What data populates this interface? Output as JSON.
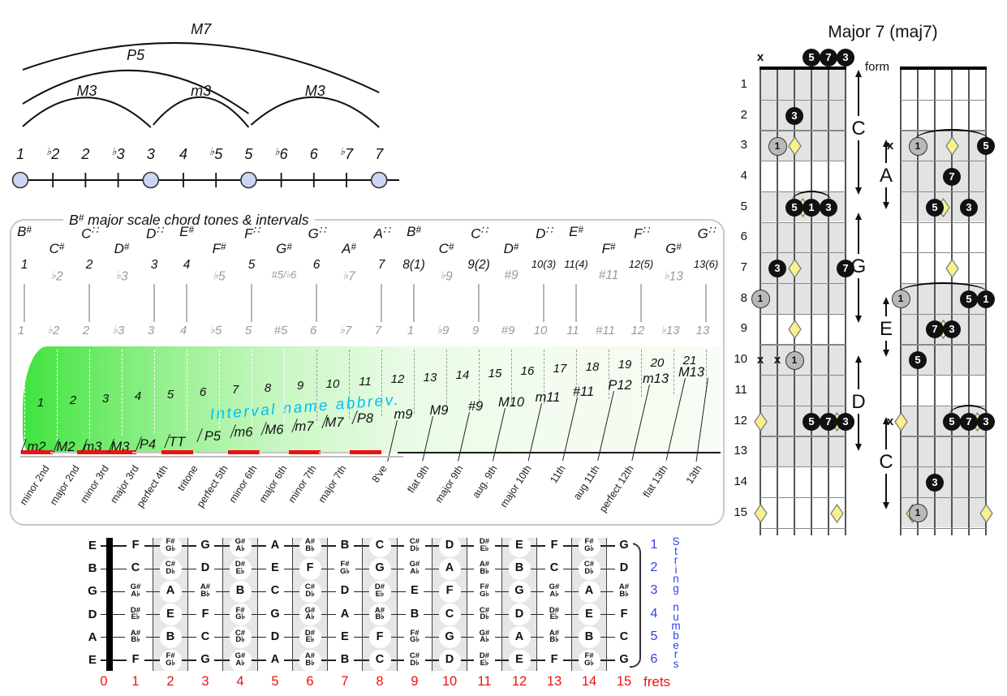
{
  "colors": {
    "red": "#ee1111",
    "blue": "#2d3ef2",
    "cyan": "#00bff3",
    "green": "#3fe33f",
    "shade": "#e4e4e4",
    "diamond": "#f8f18c",
    "node": "#ccd6f4"
  },
  "interval_diagram": {
    "degrees": [
      "1",
      "b2",
      "2",
      "b3",
      "3",
      "4",
      "b5",
      "5",
      "b6",
      "6",
      "b7",
      "7"
    ],
    "node_indexes": [
      0,
      4,
      7,
      11
    ],
    "arcs": [
      {
        "label": "M7",
        "from": 0,
        "to": 11
      },
      {
        "label": "P5",
        "from": 0,
        "to": 7
      },
      {
        "label": "M3",
        "from": 0,
        "to": 4
      },
      {
        "label": "m3",
        "from": 4,
        "to": 7
      },
      {
        "label": "M3",
        "from": 7,
        "to": 11
      }
    ]
  },
  "scale_panel": {
    "title": "B# major scale chord tones & intervals",
    "cyan_note": "Interval name abbrev.",
    "columns": [
      {
        "note": "B#",
        "row": "high",
        "degree": "1",
        "gray": false,
        "bottom": "1"
      },
      {
        "note": "C#",
        "row": "low",
        "degree": "b2",
        "gray": true,
        "bottom": "b2"
      },
      {
        "note": "C##",
        "row": "high",
        "degree": "2",
        "gray": false,
        "bottom": "2"
      },
      {
        "note": "D#",
        "row": "low",
        "degree": "b3",
        "gray": true,
        "bottom": "b3"
      },
      {
        "note": "D##",
        "row": "high",
        "degree": "3",
        "gray": false,
        "bottom": "3"
      },
      {
        "note": "E#",
        "row": "high",
        "degree": "4",
        "gray": false,
        "bottom": "4"
      },
      {
        "note": "F#",
        "row": "low",
        "degree": "b5",
        "gray": true,
        "bottom": "b5"
      },
      {
        "note": "F##",
        "row": "high",
        "degree": "5",
        "gray": false,
        "bottom": "5"
      },
      {
        "note": "G#",
        "row": "low",
        "degree": "#5/b6",
        "gray": true,
        "bottom": "#5"
      },
      {
        "note": "G##",
        "row": "high",
        "degree": "6",
        "gray": false,
        "bottom": "6"
      },
      {
        "note": "A#",
        "row": "low",
        "degree": "b7",
        "gray": true,
        "bottom": "b7"
      },
      {
        "note": "A##",
        "row": "high",
        "degree": "7",
        "gray": false,
        "bottom": "7"
      },
      {
        "note": "B#",
        "row": "high",
        "degree": "8(1)",
        "gray": false,
        "bottom": "1"
      },
      {
        "note": "C#",
        "row": "low",
        "degree": "b9",
        "gray": true,
        "bottom": "b9"
      },
      {
        "note": "C##",
        "row": "high",
        "degree": "9(2)",
        "gray": false,
        "bottom": "9"
      },
      {
        "note": "D#",
        "row": "low",
        "degree": "#9",
        "gray": true,
        "bottom": "#9"
      },
      {
        "note": "D##",
        "row": "high",
        "degree": "10(3)",
        "gray": false,
        "bottom": "10"
      },
      {
        "note": "E#",
        "row": "high",
        "degree": "11(4)",
        "gray": false,
        "bottom": "11"
      },
      {
        "note": "F#",
        "row": "low",
        "degree": "#11",
        "gray": true,
        "bottom": "#11"
      },
      {
        "note": "F##",
        "row": "high",
        "degree": "12(5)",
        "gray": false,
        "bottom": "12"
      },
      {
        "note": "G#",
        "row": "low",
        "degree": "b13",
        "gray": true,
        "bottom": "b13"
      },
      {
        "note": "G##",
        "row": "high",
        "degree": "13(6)",
        "gray": false,
        "bottom": "13"
      }
    ],
    "intervals": [
      {
        "num": "1",
        "abbr": "m2",
        "name": "minor 2nd",
        "red": true
      },
      {
        "num": "2",
        "abbr": "M2",
        "name": "major 2nd",
        "red": false
      },
      {
        "num": "3",
        "abbr": "m3",
        "name": "minor 3rd",
        "red": true
      },
      {
        "num": "4",
        "abbr": "M3",
        "name": "major 3rd",
        "red": true
      },
      {
        "num": "5",
        "abbr": "P4",
        "name": "perfect 4th",
        "red": false
      },
      {
        "num": "6",
        "abbr": "TT",
        "name": "tritone",
        "red": true
      },
      {
        "num": "7",
        "abbr": "P5",
        "name": "perfect 5th",
        "red": false
      },
      {
        "num": "8",
        "abbr": "m6",
        "name": "minor 6th",
        "red": true
      },
      {
        "num": "9",
        "abbr": "M6",
        "name": "major 6th",
        "red": false
      },
      {
        "num": "10",
        "abbr": "m7",
        "name": "minor 7th",
        "red": true
      },
      {
        "num": "11",
        "abbr": "M7",
        "name": "major 7th",
        "red": false
      },
      {
        "num": "12",
        "abbr": "P8",
        "name": "8've",
        "red": true
      },
      {
        "num": "13",
        "abbr": "m9",
        "name": "flat 9th",
        "red": false
      },
      {
        "num": "14",
        "abbr": "M9",
        "name": "major 9th",
        "red": false
      },
      {
        "num": "15",
        "abbr": "#9",
        "name": "aug. 9th",
        "red": false
      },
      {
        "num": "16",
        "abbr": "M10",
        "name": "major 10th",
        "red": false
      },
      {
        "num": "17",
        "abbr": "m11",
        "name": "11th",
        "red": false
      },
      {
        "num": "18",
        "abbr": "#11",
        "name": "aug 11th",
        "red": false
      },
      {
        "num": "19",
        "abbr": "P12",
        "name": "perfect 12th",
        "red": false
      },
      {
        "num": "20",
        "abbr": "m13",
        "name": "flat 13th",
        "red": false
      },
      {
        "num": "21",
        "abbr": "M13",
        "name": "13th",
        "red": false
      }
    ]
  },
  "chord_chart": {
    "title": "Major 7 (maj7)",
    "form_label": "form",
    "fret_numbers": [
      "1",
      "2",
      "3",
      "4",
      "5",
      "6",
      "7",
      "8",
      "9",
      "10",
      "11",
      "12",
      "13",
      "14",
      "15"
    ],
    "forms": [
      "C",
      "A",
      "G",
      "E",
      "D",
      "C"
    ],
    "boards": [
      {
        "shaded_frets": [
          1,
          2,
          3,
          5,
          6,
          7,
          8,
          10,
          11,
          12,
          13
        ],
        "top_markers": [
          {
            "s": 1,
            "t": "x"
          },
          {
            "s": 4,
            "t": "black",
            "l": "5"
          },
          {
            "s": 5,
            "t": "black",
            "l": "7"
          },
          {
            "s": 6,
            "t": "black",
            "l": "3"
          }
        ],
        "markers": [
          {
            "f": 2,
            "s": 3,
            "t": "black",
            "l": "3"
          },
          {
            "f": 3,
            "s": 2,
            "t": "gray",
            "l": "1"
          },
          {
            "f": 3,
            "s": 3,
            "t": "diamond"
          },
          {
            "f": 5,
            "s": 3,
            "t": "black",
            "l": "5"
          },
          {
            "f": 5,
            "s": 3.5,
            "t": "diamond"
          },
          {
            "f": 5,
            "s": 4,
            "t": "black",
            "l": "1"
          },
          {
            "f": 5,
            "s": 5,
            "t": "black",
            "l": "3"
          },
          {
            "f": 7,
            "s": 2,
            "t": "black",
            "l": "3"
          },
          {
            "f": 7,
            "s": 3,
            "t": "diamond"
          },
          {
            "f": 7,
            "s": 6,
            "t": "black",
            "l": "7"
          },
          {
            "f": 8,
            "s": 1,
            "t": "gray",
            "l": "1"
          },
          {
            "f": 9,
            "s": 3,
            "t": "diamond"
          },
          {
            "f": 10,
            "s": 1,
            "t": "x"
          },
          {
            "f": 10,
            "s": 2,
            "t": "x"
          },
          {
            "f": 10,
            "s": 3,
            "t": "gray",
            "l": "1"
          },
          {
            "f": 12,
            "s": 1,
            "t": "diamond"
          },
          {
            "f": 12,
            "s": 4,
            "t": "black",
            "l": "5"
          },
          {
            "f": 12,
            "s": 5,
            "t": "black",
            "l": "7"
          },
          {
            "f": 12,
            "s": 5.5,
            "t": "diamond"
          },
          {
            "f": 12,
            "s": 6,
            "t": "black",
            "l": "3"
          },
          {
            "f": 15,
            "s": 1,
            "t": "diamond"
          },
          {
            "f": 15,
            "s": 5.5,
            "t": "diamond"
          }
        ],
        "barres": [
          {
            "f": 5,
            "s1": 3,
            "s2": 5
          }
        ]
      },
      {
        "shaded_frets": [
          3,
          4,
          5,
          8,
          9,
          10,
          12,
          13,
          14,
          15
        ],
        "top_markers": [],
        "markers": [
          {
            "f": 3,
            "s": 0,
            "t": "x"
          },
          {
            "f": 3,
            "s": 2,
            "t": "gray",
            "l": "1"
          },
          {
            "f": 3,
            "s": 4,
            "t": "diamond"
          },
          {
            "f": 3,
            "s": 6,
            "t": "black",
            "l": "5"
          },
          {
            "f": 4,
            "s": 4,
            "t": "black",
            "l": "7"
          },
          {
            "f": 5,
            "s": 3,
            "t": "black",
            "l": "5"
          },
          {
            "f": 5,
            "s": 3.5,
            "t": "diamond"
          },
          {
            "f": 5,
            "s": 5,
            "t": "black",
            "l": "3"
          },
          {
            "f": 7,
            "s": 4,
            "t": "diamond"
          },
          {
            "f": 8,
            "s": 1,
            "t": "gray",
            "l": "1"
          },
          {
            "f": 8,
            "s": 5,
            "t": "black",
            "l": "5"
          },
          {
            "f": 8,
            "s": 6,
            "t": "black",
            "l": "1"
          },
          {
            "f": 9,
            "s": 3,
            "t": "black",
            "l": "7"
          },
          {
            "f": 9,
            "s": 3.5,
            "t": "diamond"
          },
          {
            "f": 9,
            "s": 4,
            "t": "black",
            "l": "3"
          },
          {
            "f": 10,
            "s": 2,
            "t": "black",
            "l": "5"
          },
          {
            "f": 12,
            "s": 0,
            "t": "x"
          },
          {
            "f": 12,
            "s": 1,
            "t": "diamond"
          },
          {
            "f": 12,
            "s": 4,
            "t": "black",
            "l": "5"
          },
          {
            "f": 12,
            "s": 5,
            "t": "black",
            "l": "7"
          },
          {
            "f": 12,
            "s": 5.5,
            "t": "diamond"
          },
          {
            "f": 12,
            "s": 6,
            "t": "black",
            "l": "3"
          },
          {
            "f": 14,
            "s": 3,
            "t": "black",
            "l": "3"
          },
          {
            "f": 15,
            "s": 1.7,
            "t": "diamond"
          },
          {
            "f": 15,
            "s": 2,
            "t": "gray",
            "l": "1"
          },
          {
            "f": 15,
            "s": 6,
            "t": "diamond"
          }
        ],
        "barres": [
          {
            "f": 3,
            "s1": 2,
            "s2": 6
          },
          {
            "f": 8,
            "s1": 1,
            "s2": 6
          },
          {
            "f": 12,
            "s1": 4,
            "s2": 6
          }
        ]
      }
    ]
  },
  "fretboard_chart": {
    "open_strings": [
      "E",
      "B",
      "G",
      "D",
      "A",
      "E"
    ],
    "fret_numbers": [
      "0",
      "1",
      "2",
      "3",
      "4",
      "5",
      "6",
      "7",
      "8",
      "9",
      "10",
      "11",
      "12",
      "13",
      "14",
      "15"
    ],
    "frets_label": "frets",
    "string_numbers": [
      "1",
      "2",
      "3",
      "4",
      "5",
      "6"
    ],
    "string_axis_label": "String numbers",
    "columns": [
      {
        "fret": 1,
        "shaded": false,
        "notes": [
          "F",
          "C",
          "G#/Ab",
          "D#/Eb",
          "A#/Bb",
          "F"
        ]
      },
      {
        "fret": 2,
        "shaded": true,
        "notes": [
          "F#/Gb",
          "C#/Db",
          "A",
          "E",
          "B",
          "F#/Gb"
        ]
      },
      {
        "fret": 3,
        "shaded": false,
        "notes": [
          "G",
          "D",
          "A#/Bb",
          "F",
          "C",
          "G"
        ]
      },
      {
        "fret": 4,
        "shaded": true,
        "notes": [
          "G#/Ab",
          "D#/Eb",
          "B",
          "F#/Gb",
          "C#/Db",
          "G#/Ab"
        ]
      },
      {
        "fret": 5,
        "shaded": false,
        "notes": [
          "A",
          "E",
          "C",
          "G",
          "D",
          "A"
        ]
      },
      {
        "fret": 6,
        "shaded": true,
        "notes": [
          "A#/Bb",
          "F",
          "C#/Db",
          "G#/Ab",
          "D#/Eb",
          "A#/Bb"
        ]
      },
      {
        "fret": 7,
        "shaded": false,
        "notes": [
          "B",
          "F#/Gb",
          "D",
          "A",
          "E",
          "B"
        ]
      },
      {
        "fret": 8,
        "shaded": true,
        "notes": [
          "C",
          "G",
          "D#/Eb",
          "A#/Bb",
          "F",
          "C"
        ]
      },
      {
        "fret": 9,
        "shaded": false,
        "notes": [
          "C#/Db",
          "G#/Ab",
          "E",
          "B",
          "F#/Gb",
          "C#/Db"
        ]
      },
      {
        "fret": 10,
        "shaded": true,
        "notes": [
          "D",
          "A",
          "F",
          "C",
          "G",
          "D"
        ]
      },
      {
        "fret": 11,
        "shaded": false,
        "notes": [
          "D#/Eb",
          "A#/Bb",
          "F#/Gb",
          "C#/Db",
          "G#/Ab",
          "D#/Eb"
        ]
      },
      {
        "fret": 12,
        "shaded": true,
        "notes": [
          "E",
          "B",
          "G",
          "D",
          "A",
          "E"
        ]
      },
      {
        "fret": 13,
        "shaded": false,
        "notes": [
          "F",
          "C",
          "G#/Ab",
          "D#/Eb",
          "A#/Bb",
          "F"
        ]
      },
      {
        "fret": 14,
        "shaded": true,
        "notes": [
          "F#/Gb",
          "C#/Db",
          "A",
          "E",
          "B",
          "F#/Gb"
        ]
      },
      {
        "fret": 15,
        "shaded": false,
        "notes": [
          "G",
          "D",
          "A#/Bb",
          "F",
          "C",
          "G"
        ]
      }
    ]
  }
}
